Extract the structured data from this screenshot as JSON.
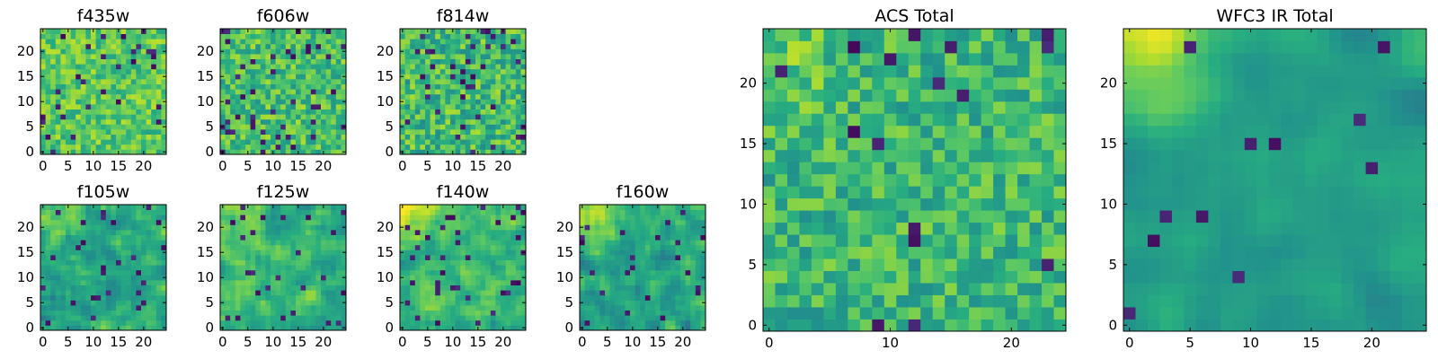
{
  "figure": {
    "background": "#ffffff",
    "colormap": "viridis"
  },
  "chart_data": [
    {
      "type": "heatmap",
      "title": "f435w",
      "grid_size": 25,
      "xlim": [
        -0.5,
        24.5
      ],
      "ylim": [
        -0.5,
        24.5
      ],
      "xticks": [
        0,
        5,
        10,
        15,
        20
      ],
      "yticks": [
        0,
        5,
        10,
        15,
        20
      ],
      "xtick_labels": [
        "0",
        "5",
        "10",
        "15",
        "20"
      ],
      "ytick_labels": [
        "0",
        "5",
        "10",
        "15",
        "20"
      ],
      "texture": {
        "seed": 11,
        "mean": 0.74,
        "spread": 0.16,
        "smooth": 0,
        "dark_fraction": 0.05,
        "corner_bright": 0
      }
    },
    {
      "type": "heatmap",
      "title": "f606w",
      "grid_size": 25,
      "xlim": [
        -0.5,
        24.5
      ],
      "ylim": [
        -0.5,
        24.5
      ],
      "xticks": [
        0,
        5,
        10,
        15,
        20
      ],
      "yticks": [
        0,
        5,
        10,
        15,
        20
      ],
      "xtick_labels": [
        "0",
        "5",
        "10",
        "15",
        "20"
      ],
      "ytick_labels": [
        "0",
        "5",
        "10",
        "15",
        "20"
      ],
      "texture": {
        "seed": 23,
        "mean": 0.7,
        "spread": 0.18,
        "smooth": 0,
        "dark_fraction": 0.06,
        "corner_bright": 0
      }
    },
    {
      "type": "heatmap",
      "title": "f814w",
      "grid_size": 25,
      "xlim": [
        -0.5,
        24.5
      ],
      "ylim": [
        -0.5,
        24.5
      ],
      "xticks": [
        0,
        5,
        10,
        15,
        20
      ],
      "yticks": [
        0,
        5,
        10,
        15,
        20
      ],
      "xtick_labels": [
        "0",
        "5",
        "10",
        "15",
        "20"
      ],
      "ytick_labels": [
        "0",
        "5",
        "10",
        "15",
        "20"
      ],
      "texture": {
        "seed": 37,
        "mean": 0.68,
        "spread": 0.2,
        "smooth": 0,
        "dark_fraction": 0.07,
        "corner_bright": 0
      }
    },
    {
      "type": "heatmap",
      "title": "f105w",
      "grid_size": 25,
      "xlim": [
        -0.5,
        24.5
      ],
      "ylim": [
        -0.5,
        24.5
      ],
      "xticks": [
        0,
        5,
        10,
        15,
        20
      ],
      "yticks": [
        0,
        5,
        10,
        15,
        20
      ],
      "xtick_labels": [
        "0",
        "5",
        "10",
        "15",
        "20"
      ],
      "ytick_labels": [
        "0",
        "5",
        "10",
        "15",
        "20"
      ],
      "texture": {
        "seed": 41,
        "mean": 0.62,
        "spread": 0.2,
        "smooth": 1,
        "dark_fraction": 0.05,
        "corner_bright": 0.2
      }
    },
    {
      "type": "heatmap",
      "title": "f125w",
      "grid_size": 25,
      "xlim": [
        -0.5,
        24.5
      ],
      "ylim": [
        -0.5,
        24.5
      ],
      "xticks": [
        0,
        5,
        10,
        15,
        20
      ],
      "yticks": [
        0,
        5,
        10,
        15,
        20
      ],
      "xtick_labels": [
        "0",
        "5",
        "10",
        "15",
        "20"
      ],
      "ytick_labels": [
        "0",
        "5",
        "10",
        "15",
        "20"
      ],
      "texture": {
        "seed": 53,
        "mean": 0.64,
        "spread": 0.2,
        "smooth": 1,
        "dark_fraction": 0.05,
        "corner_bright": 0.15
      }
    },
    {
      "type": "heatmap",
      "title": "f140w",
      "grid_size": 25,
      "xlim": [
        -0.5,
        24.5
      ],
      "ylim": [
        -0.5,
        24.5
      ],
      "xticks": [
        0,
        5,
        10,
        15,
        20
      ],
      "yticks": [
        0,
        5,
        10,
        15,
        20
      ],
      "xtick_labels": [
        "0",
        "5",
        "10",
        "15",
        "20"
      ],
      "ytick_labels": [
        "0",
        "5",
        "10",
        "15",
        "20"
      ],
      "texture": {
        "seed": 67,
        "mean": 0.66,
        "spread": 0.18,
        "smooth": 1,
        "dark_fraction": 0.04,
        "corner_bright": 0.3
      }
    },
    {
      "type": "heatmap",
      "title": "f160w",
      "grid_size": 25,
      "xlim": [
        -0.5,
        24.5
      ],
      "ylim": [
        -0.5,
        24.5
      ],
      "xticks": [
        0,
        5,
        10,
        15,
        20
      ],
      "yticks": [
        0,
        5,
        10,
        15,
        20
      ],
      "xtick_labels": [
        "0",
        "5",
        "10",
        "15",
        "20"
      ],
      "ytick_labels": [
        "0",
        "5",
        "10",
        "15",
        "20"
      ],
      "texture": {
        "seed": 79,
        "mean": 0.58,
        "spread": 0.2,
        "smooth": 1,
        "dark_fraction": 0.05,
        "corner_bright": 0.35
      }
    },
    {
      "type": "heatmap",
      "title": "ACS Total",
      "grid_size": 25,
      "xlim": [
        -0.5,
        24.5
      ],
      "ylim": [
        -0.5,
        24.5
      ],
      "xticks": [
        0,
        10,
        20
      ],
      "yticks": [
        0,
        5,
        10,
        15,
        20
      ],
      "xtick_labels": [
        "0",
        "10",
        "20"
      ],
      "ytick_labels": [
        "0",
        "5",
        "10",
        "15",
        "20"
      ],
      "texture": {
        "seed": 97,
        "mean": 0.66,
        "spread": 0.17,
        "smooth": 0,
        "dark_fraction": 0.03,
        "corner_bright": 0.1
      }
    },
    {
      "type": "heatmap",
      "title": "WFC3 IR Total",
      "grid_size": 25,
      "xlim": [
        -0.5,
        24.5
      ],
      "ylim": [
        -0.5,
        24.5
      ],
      "xticks": [
        0,
        5,
        10,
        15,
        20
      ],
      "yticks": [
        0,
        5,
        10,
        15,
        20
      ],
      "xtick_labels": [
        "0",
        "5",
        "10",
        "15",
        "20"
      ],
      "ytick_labels": [
        "0",
        "5",
        "10",
        "15",
        "20"
      ],
      "texture": {
        "seed": 113,
        "mean": 0.56,
        "spread": 0.12,
        "smooth": 2,
        "dark_fraction": 0.02,
        "corner_bright": 0.4
      }
    }
  ]
}
